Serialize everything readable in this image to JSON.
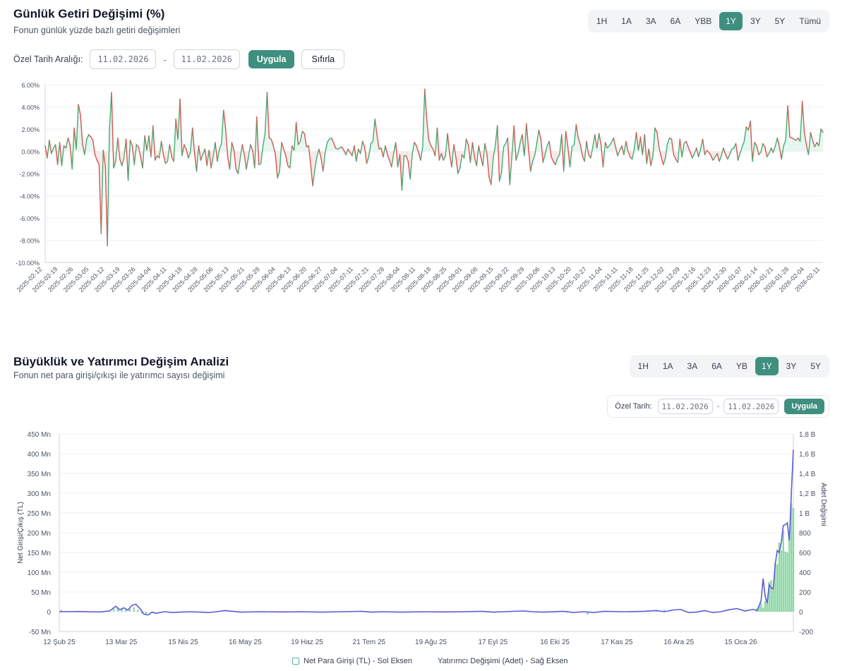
{
  "section1": {
    "title": "Günlük Getiri Değişimi (%)",
    "subtitle": "Fonun günlük yüzde bazlı getiri değişimleri",
    "ranges": [
      "1H",
      "1A",
      "3A",
      "6A",
      "YBB",
      "1Y",
      "3Y",
      "5Y",
      "Tümü"
    ],
    "active_range": "1Y",
    "custom_label": "Özel Tarih Aralığı:",
    "start_date": "11.02.2026",
    "end_date": "11.02.2026",
    "dash": "-",
    "apply_label": "Uygula",
    "reset_label": "Sıfırla"
  },
  "section2": {
    "title": "Büyüklük ve Yatırımcı Değişim Analizi",
    "subtitle": "Fonun net para girişi/çıkışı ile yatırımcı sayısı değişimi",
    "ranges": [
      "1H",
      "1A",
      "3A",
      "6A",
      "YB",
      "1Y",
      "3Y",
      "5Y"
    ],
    "active_range": "1Y",
    "custom_label": "Özel Tarih:",
    "start_date": "11.02.2026",
    "end_date": "11.02.2026",
    "dash": "-",
    "apply_label": "Uygula",
    "legend_left": "Net Para Girişi (TL) - Sol Eksen",
    "legend_right": "Yatırımcı Değişimi (Adet) - Sağ Eksen"
  },
  "colors": {
    "accent": "#3f8f7f",
    "positive": "#3fae73",
    "negative": "#d9534f",
    "flow_line": "#5b5bd6",
    "investor_bar": "#7fd39a"
  },
  "chart_data": [
    {
      "type": "line",
      "title": "Günlük Getiri Değişimi (%)",
      "ylim": [
        -10,
        6
      ],
      "y_ticks": [
        "6.00%",
        "4.00%",
        "2.00%",
        "0.00%",
        "-2.00%",
        "-4.00%",
        "-6.00%",
        "-8.00%",
        "-10.00%"
      ],
      "x_ticks": [
        "2025-02-12",
        "2025-02-19",
        "2025-02-26",
        "2025-03-05",
        "2025-03-12",
        "2025-03-19",
        "2025-03-26",
        "2025-04-04",
        "2025-04-11",
        "2025-04-18",
        "2025-04-28",
        "2025-05-06",
        "2025-05-13",
        "2025-05-21",
        "2025-05-28",
        "2025-06-04",
        "2025-06-13",
        "2025-06-20",
        "2025-06-27",
        "2025-07-04",
        "2025-07-11",
        "2025-07-21",
        "2025-07-28",
        "2025-08-04",
        "2025-08-11",
        "2025-08-18",
        "2025-08-25",
        "2025-09-01",
        "2025-09-08",
        "2025-09-15",
        "2025-09-22",
        "2025-09-29",
        "2025-10-06",
        "2025-10-13",
        "2025-10-20",
        "2025-10-27",
        "2025-11-04",
        "2025-11-11",
        "2025-11-18",
        "2025-11-25",
        "2025-12-02",
        "2025-12-09",
        "2025-12-16",
        "2025-12-23",
        "2025-12-30",
        "2026-01-07",
        "2026-01-14",
        "2026-01-21",
        "2026-01-28",
        "2026-02-04",
        "2026-02-11"
      ],
      "series": [
        {
          "name": "Günlük Getiri (%)",
          "values": [
            0.5,
            -0.6,
            1.0,
            -0.2,
            0.3,
            0.6,
            -1.2,
            0.8,
            -1.3,
            0.5,
            0.3,
            1.2,
            0.6,
            -1.6,
            2.1,
            0.2,
            4.2,
            3.3,
            0.7,
            -0.3,
            1.1,
            1.5,
            1.3,
            1.0,
            -0.3,
            -0.8,
            -1.2,
            -7.4,
            0.1,
            -1.4,
            -8.5,
            2.0,
            5.3,
            -1.5,
            -0.9,
            1.2,
            -0.7,
            -1.3,
            -0.6,
            1.1,
            -2.6,
            1.0,
            0.5,
            -1.2,
            0.6,
            0.4,
            -0.5,
            -1.5,
            1.4,
            0.1,
            1.4,
            -0.5,
            2.3,
            -0.8,
            -0.4,
            -0.6,
            0.9,
            -0.3,
            -1.1,
            -0.9,
            0.6,
            -0.5,
            -0.9,
            2.9,
            1.1,
            4.7,
            -0.4,
            0.6,
            0.2,
            -0.6,
            -0.1,
            2.1,
            -0.1,
            -1.8,
            0.5,
            -0.8,
            -0.3,
            0.2,
            -1.3,
            0.1,
            -1.5,
            -0.5,
            0.8,
            -0.9,
            0.2,
            0.7,
            3.7,
            2.0,
            -0.5,
            -1.6,
            0.8,
            0.1,
            -1.6,
            -2.0,
            -0.7,
            0.6,
            -0.3,
            -1.6,
            -0.5,
            0.6,
            0.1,
            -1.5,
            3.1,
            -1.2,
            -1.1,
            0.5,
            1.6,
            5.3,
            1.2,
            1.1,
            0.5,
            -0.3,
            -2.4,
            -1.8,
            0.8,
            0.2,
            -0.4,
            -1.3,
            -1.5,
            0.5,
            0.1,
            2.6,
            0.6,
            0.9,
            1.8,
            1.6,
            0.4,
            0.5,
            -1.2,
            -3.1,
            -1.6,
            -0.5,
            0.2,
            -0.6,
            -1.8,
            -0.1,
            0.8,
            1.1,
            1.2,
            0.8,
            0.3,
            0.2,
            0.3,
            0.4,
            0.1,
            -0.3,
            0.2,
            -0.1,
            -0.4,
            0.5,
            -0.9,
            0.2,
            -0.2,
            0.9,
            0.4,
            -1.1,
            -0.5,
            0.7,
            0.9,
            2.9,
            1.4,
            0.2,
            0.3,
            -0.5,
            0.5,
            -0.3,
            -0.8,
            -1.4,
            -0.2,
            0.8,
            -1.4,
            -0.3,
            -3.5,
            -0.4,
            -0.4,
            -0.9,
            -2.5,
            -0.2,
            0.8,
            0.5,
            -0.1,
            -0.8,
            0.4,
            5.6,
            2.8,
            1.0,
            0.5,
            0.2,
            -0.4,
            2.1,
            -0.8,
            -0.2,
            -0.8,
            -0.4,
            1.6,
            -0.3,
            -1.4,
            0.6,
            -0.5,
            -2.0,
            -1.5,
            -0.3,
            -0.6,
            1.1,
            0.6,
            -1.0,
            0.8,
            -0.6,
            -1.3,
            0.5,
            -0.5,
            -1.3,
            0.7,
            -0.3,
            -2.3,
            -3.0,
            -0.6,
            0.5,
            2.3,
            -2.7,
            -1.9,
            0.4,
            0.7,
            1.2,
            -3.0,
            -0.5,
            2.3,
            -0.8,
            -0.2,
            0.8,
            1.5,
            -0.4,
            2.5,
            0.3,
            -1.8,
            -0.9,
            -0.4,
            0.7,
            1.9,
            1.1,
            -1.0,
            -0.3,
            0.5,
            0.9,
            -0.5,
            -0.9,
            -1.2,
            -0.6,
            -0.3,
            1.5,
            -1.8,
            1.8,
            0.4,
            -1.4,
            0.4,
            0.6,
            2.4,
            1.2,
            0.6,
            -0.4,
            -0.9,
            0.9,
            -0.3,
            -0.6,
            0.4,
            1.5,
            0.3,
            1.6,
            0.6,
            -1.4,
            0.8,
            0.3,
            0.5,
            0.8,
            1.2,
            0.4,
            -0.4,
            0.1,
            0.5,
            -0.3,
            0.9,
            0.0,
            -0.5,
            -0.7,
            0.2,
            1.7,
            0.1,
            1.3,
            -0.3,
            1.5,
            -1.1,
            0.2,
            -1.3,
            -0.4,
            2.1,
            1.7,
            0.3,
            -0.5,
            -1.2,
            -0.6,
            0.7,
            1.2,
            1.1,
            -0.3,
            -0.7,
            -1.0,
            1.1,
            -0.5,
            0.7,
            0.9,
            0.4,
            -0.1,
            -0.6,
            -0.2,
            0.3,
            -0.5,
            0.2,
            1.1,
            -0.3,
            0.1,
            -0.1,
            -0.4,
            -0.8,
            -0.5,
            -0.2,
            -0.9,
            -0.4,
            0.3,
            -0.3,
            -0.7,
            -0.3,
            0.2,
            0.3,
            0.7,
            -0.8,
            -0.2,
            0.4,
            0.9,
            2.2,
            1.9,
            2.7,
            -0.9,
            0.8,
            0.5,
            -0.3,
            -0.1,
            0.7,
            0.4,
            -0.5,
            -0.2,
            0.3,
            -0.1,
            0.5,
            1.2,
            0.4,
            -0.7,
            0.5,
            1.0,
            4.1,
            1.3,
            1.2,
            1.1,
            1.0,
            1.2,
            0.9,
            4.5,
            1.7,
            0.6,
            -0.3,
            1.7,
            1.0,
            0.4,
            0.8,
            0.5,
            2.0,
            1.7
          ]
        }
      ]
    },
    {
      "type": "bar",
      "title": "Büyüklük ve Yatırımcı Değişim Analizi",
      "x_ticks": [
        "12 Şub 25",
        "13 Mar 25",
        "15 Nis 25",
        "16 May 25",
        "19 Haz 25",
        "21 Tem 25",
        "19 Ağu 25",
        "17 Eyl 25",
        "16 Eki 25",
        "17 Kas 25",
        "16 Ara 25",
        "15 Oca 26"
      ],
      "ylabel_left": "Net Girişi/Çıkış (TL)",
      "ylabel_right": "Adet Değişimi",
      "ylim_left": [
        -50,
        450
      ],
      "ylim_right": [
        -200,
        1800
      ],
      "y_ticks_left": [
        "450 Mn",
        "400 Mn",
        "350 Mn",
        "300 Mn",
        "250 Mn",
        "200 Mn",
        "150 Mn",
        "100 Mn",
        "50 Mn",
        "0",
        "-50 Mn"
      ],
      "y_ticks_right": [
        "1,8 B",
        "1,6 B",
        "1,4 B",
        "1,2 B",
        "1 B",
        "800",
        "600",
        "400",
        "200",
        "0",
        "-200"
      ],
      "series": [
        {
          "name": "Net Para Girişi (TL)",
          "axis": "left",
          "unit": "Mn TL",
          "points": [
            [
              0,
              0
            ],
            [
              10,
              0.5
            ],
            [
              20,
              -0.5
            ],
            [
              25,
              2
            ],
            [
              28,
              14
            ],
            [
              30,
              5
            ],
            [
              32,
              10
            ],
            [
              34,
              4
            ],
            [
              36,
              16
            ],
            [
              38,
              19
            ],
            [
              40,
              8
            ],
            [
              42,
              -6
            ],
            [
              44,
              -8
            ],
            [
              46,
              -1
            ],
            [
              48,
              -4
            ],
            [
              52,
              0
            ],
            [
              56,
              -2
            ],
            [
              60,
              -1
            ],
            [
              65,
              0
            ],
            [
              70,
              -1
            ],
            [
              74,
              -2
            ],
            [
              78,
              0
            ],
            [
              82,
              3
            ],
            [
              86,
              1
            ],
            [
              90,
              -1
            ],
            [
              100,
              0
            ],
            [
              110,
              -0.5
            ],
            [
              120,
              0
            ],
            [
              130,
              -1
            ],
            [
              140,
              0
            ],
            [
              150,
              1
            ],
            [
              155,
              -1
            ],
            [
              160,
              0
            ],
            [
              170,
              -1
            ],
            [
              180,
              0
            ],
            [
              190,
              -0.5
            ],
            [
              200,
              0
            ],
            [
              210,
              1
            ],
            [
              215,
              -1
            ],
            [
              220,
              0
            ],
            [
              230,
              2
            ],
            [
              235,
              0
            ],
            [
              240,
              -1
            ],
            [
              250,
              1
            ],
            [
              255,
              -2
            ],
            [
              260,
              0
            ],
            [
              265,
              -2
            ],
            [
              270,
              1
            ],
            [
              280,
              0
            ],
            [
              290,
              1
            ],
            [
              296,
              3
            ],
            [
              300,
              0
            ],
            [
              304,
              4
            ],
            [
              308,
              6
            ],
            [
              312,
              -2
            ],
            [
              316,
              -1
            ],
            [
              320,
              3
            ],
            [
              324,
              -2
            ],
            [
              328,
              0
            ],
            [
              332,
              5
            ],
            [
              336,
              8
            ],
            [
              340,
              2
            ],
            [
              344,
              6
            ],
            [
              346,
              3
            ],
            [
              348,
              28
            ],
            [
              349,
              84
            ],
            [
              350,
              40
            ],
            [
              351,
              22
            ],
            [
              352,
              68
            ],
            [
              353,
              60
            ],
            [
              354,
              58
            ],
            [
              355,
              120
            ],
            [
              356,
              155
            ],
            [
              357,
              150
            ],
            [
              358,
              175
            ],
            [
              359,
              218
            ],
            [
              360,
              220
            ],
            [
              361,
              225
            ],
            [
              362,
              180
            ],
            [
              363,
              300
            ],
            [
              364,
              410
            ]
          ]
        },
        {
          "name": "Yatırımcı Değişimi (Adet)",
          "axis": "right",
          "unit": "Adet",
          "points": [
            [
              1,
              20
            ],
            [
              27,
              30
            ],
            [
              29,
              40
            ],
            [
              31,
              35
            ],
            [
              33,
              25
            ],
            [
              35,
              30
            ],
            [
              37,
              45
            ],
            [
              39,
              20
            ],
            [
              41,
              -20
            ],
            [
              43,
              -25
            ],
            [
              252,
              10
            ],
            [
              262,
              -30
            ],
            [
              296,
              15
            ],
            [
              300,
              20
            ],
            [
              346,
              30
            ],
            [
              347,
              60
            ],
            [
              348,
              90
            ],
            [
              349,
              40
            ],
            [
              350,
              110
            ],
            [
              351,
              100
            ],
            [
              352,
              300
            ],
            [
              353,
              320
            ],
            [
              354,
              250
            ],
            [
              355,
              500
            ],
            [
              356,
              480
            ],
            [
              357,
              700
            ],
            [
              358,
              620
            ],
            [
              359,
              820
            ],
            [
              360,
              610
            ],
            [
              361,
              600
            ],
            [
              362,
              800
            ],
            [
              363,
              1100
            ],
            [
              364,
              1050
            ]
          ]
        }
      ]
    }
  ]
}
